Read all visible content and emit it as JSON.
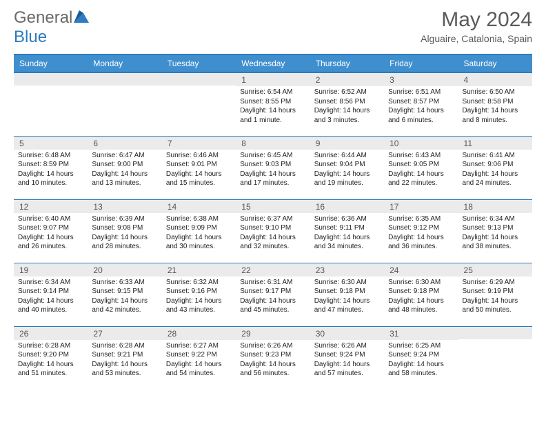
{
  "logo": {
    "text1": "General",
    "text2": "Blue"
  },
  "title": "May 2024",
  "subtitle": "Alguaire, Catalonia, Spain",
  "colors": {
    "header_bg": "#3f8fcf",
    "header_border": "#2d7bc0",
    "daynum_bg": "#ebebeb",
    "text_gray": "#5a5a5a"
  },
  "weekdays": [
    "Sunday",
    "Monday",
    "Tuesday",
    "Wednesday",
    "Thursday",
    "Friday",
    "Saturday"
  ],
  "weeks": [
    [
      {
        "n": "",
        "sr": "",
        "ss": "",
        "dl": ""
      },
      {
        "n": "",
        "sr": "",
        "ss": "",
        "dl": ""
      },
      {
        "n": "",
        "sr": "",
        "ss": "",
        "dl": ""
      },
      {
        "n": "1",
        "sr": "Sunrise: 6:54 AM",
        "ss": "Sunset: 8:55 PM",
        "dl": "Daylight: 14 hours and 1 minute."
      },
      {
        "n": "2",
        "sr": "Sunrise: 6:52 AM",
        "ss": "Sunset: 8:56 PM",
        "dl": "Daylight: 14 hours and 3 minutes."
      },
      {
        "n": "3",
        "sr": "Sunrise: 6:51 AM",
        "ss": "Sunset: 8:57 PM",
        "dl": "Daylight: 14 hours and 6 minutes."
      },
      {
        "n": "4",
        "sr": "Sunrise: 6:50 AM",
        "ss": "Sunset: 8:58 PM",
        "dl": "Daylight: 14 hours and 8 minutes."
      }
    ],
    [
      {
        "n": "5",
        "sr": "Sunrise: 6:48 AM",
        "ss": "Sunset: 8:59 PM",
        "dl": "Daylight: 14 hours and 10 minutes."
      },
      {
        "n": "6",
        "sr": "Sunrise: 6:47 AM",
        "ss": "Sunset: 9:00 PM",
        "dl": "Daylight: 14 hours and 13 minutes."
      },
      {
        "n": "7",
        "sr": "Sunrise: 6:46 AM",
        "ss": "Sunset: 9:01 PM",
        "dl": "Daylight: 14 hours and 15 minutes."
      },
      {
        "n": "8",
        "sr": "Sunrise: 6:45 AM",
        "ss": "Sunset: 9:03 PM",
        "dl": "Daylight: 14 hours and 17 minutes."
      },
      {
        "n": "9",
        "sr": "Sunrise: 6:44 AM",
        "ss": "Sunset: 9:04 PM",
        "dl": "Daylight: 14 hours and 19 minutes."
      },
      {
        "n": "10",
        "sr": "Sunrise: 6:43 AM",
        "ss": "Sunset: 9:05 PM",
        "dl": "Daylight: 14 hours and 22 minutes."
      },
      {
        "n": "11",
        "sr": "Sunrise: 6:41 AM",
        "ss": "Sunset: 9:06 PM",
        "dl": "Daylight: 14 hours and 24 minutes."
      }
    ],
    [
      {
        "n": "12",
        "sr": "Sunrise: 6:40 AM",
        "ss": "Sunset: 9:07 PM",
        "dl": "Daylight: 14 hours and 26 minutes."
      },
      {
        "n": "13",
        "sr": "Sunrise: 6:39 AM",
        "ss": "Sunset: 9:08 PM",
        "dl": "Daylight: 14 hours and 28 minutes."
      },
      {
        "n": "14",
        "sr": "Sunrise: 6:38 AM",
        "ss": "Sunset: 9:09 PM",
        "dl": "Daylight: 14 hours and 30 minutes."
      },
      {
        "n": "15",
        "sr": "Sunrise: 6:37 AM",
        "ss": "Sunset: 9:10 PM",
        "dl": "Daylight: 14 hours and 32 minutes."
      },
      {
        "n": "16",
        "sr": "Sunrise: 6:36 AM",
        "ss": "Sunset: 9:11 PM",
        "dl": "Daylight: 14 hours and 34 minutes."
      },
      {
        "n": "17",
        "sr": "Sunrise: 6:35 AM",
        "ss": "Sunset: 9:12 PM",
        "dl": "Daylight: 14 hours and 36 minutes."
      },
      {
        "n": "18",
        "sr": "Sunrise: 6:34 AM",
        "ss": "Sunset: 9:13 PM",
        "dl": "Daylight: 14 hours and 38 minutes."
      }
    ],
    [
      {
        "n": "19",
        "sr": "Sunrise: 6:34 AM",
        "ss": "Sunset: 9:14 PM",
        "dl": "Daylight: 14 hours and 40 minutes."
      },
      {
        "n": "20",
        "sr": "Sunrise: 6:33 AM",
        "ss": "Sunset: 9:15 PM",
        "dl": "Daylight: 14 hours and 42 minutes."
      },
      {
        "n": "21",
        "sr": "Sunrise: 6:32 AM",
        "ss": "Sunset: 9:16 PM",
        "dl": "Daylight: 14 hours and 43 minutes."
      },
      {
        "n": "22",
        "sr": "Sunrise: 6:31 AM",
        "ss": "Sunset: 9:17 PM",
        "dl": "Daylight: 14 hours and 45 minutes."
      },
      {
        "n": "23",
        "sr": "Sunrise: 6:30 AM",
        "ss": "Sunset: 9:18 PM",
        "dl": "Daylight: 14 hours and 47 minutes."
      },
      {
        "n": "24",
        "sr": "Sunrise: 6:30 AM",
        "ss": "Sunset: 9:18 PM",
        "dl": "Daylight: 14 hours and 48 minutes."
      },
      {
        "n": "25",
        "sr": "Sunrise: 6:29 AM",
        "ss": "Sunset: 9:19 PM",
        "dl": "Daylight: 14 hours and 50 minutes."
      }
    ],
    [
      {
        "n": "26",
        "sr": "Sunrise: 6:28 AM",
        "ss": "Sunset: 9:20 PM",
        "dl": "Daylight: 14 hours and 51 minutes."
      },
      {
        "n": "27",
        "sr": "Sunrise: 6:28 AM",
        "ss": "Sunset: 9:21 PM",
        "dl": "Daylight: 14 hours and 53 minutes."
      },
      {
        "n": "28",
        "sr": "Sunrise: 6:27 AM",
        "ss": "Sunset: 9:22 PM",
        "dl": "Daylight: 14 hours and 54 minutes."
      },
      {
        "n": "29",
        "sr": "Sunrise: 6:26 AM",
        "ss": "Sunset: 9:23 PM",
        "dl": "Daylight: 14 hours and 56 minutes."
      },
      {
        "n": "30",
        "sr": "Sunrise: 6:26 AM",
        "ss": "Sunset: 9:24 PM",
        "dl": "Daylight: 14 hours and 57 minutes."
      },
      {
        "n": "31",
        "sr": "Sunrise: 6:25 AM",
        "ss": "Sunset: 9:24 PM",
        "dl": "Daylight: 14 hours and 58 minutes."
      },
      {
        "n": "",
        "sr": "",
        "ss": "",
        "dl": ""
      }
    ]
  ]
}
